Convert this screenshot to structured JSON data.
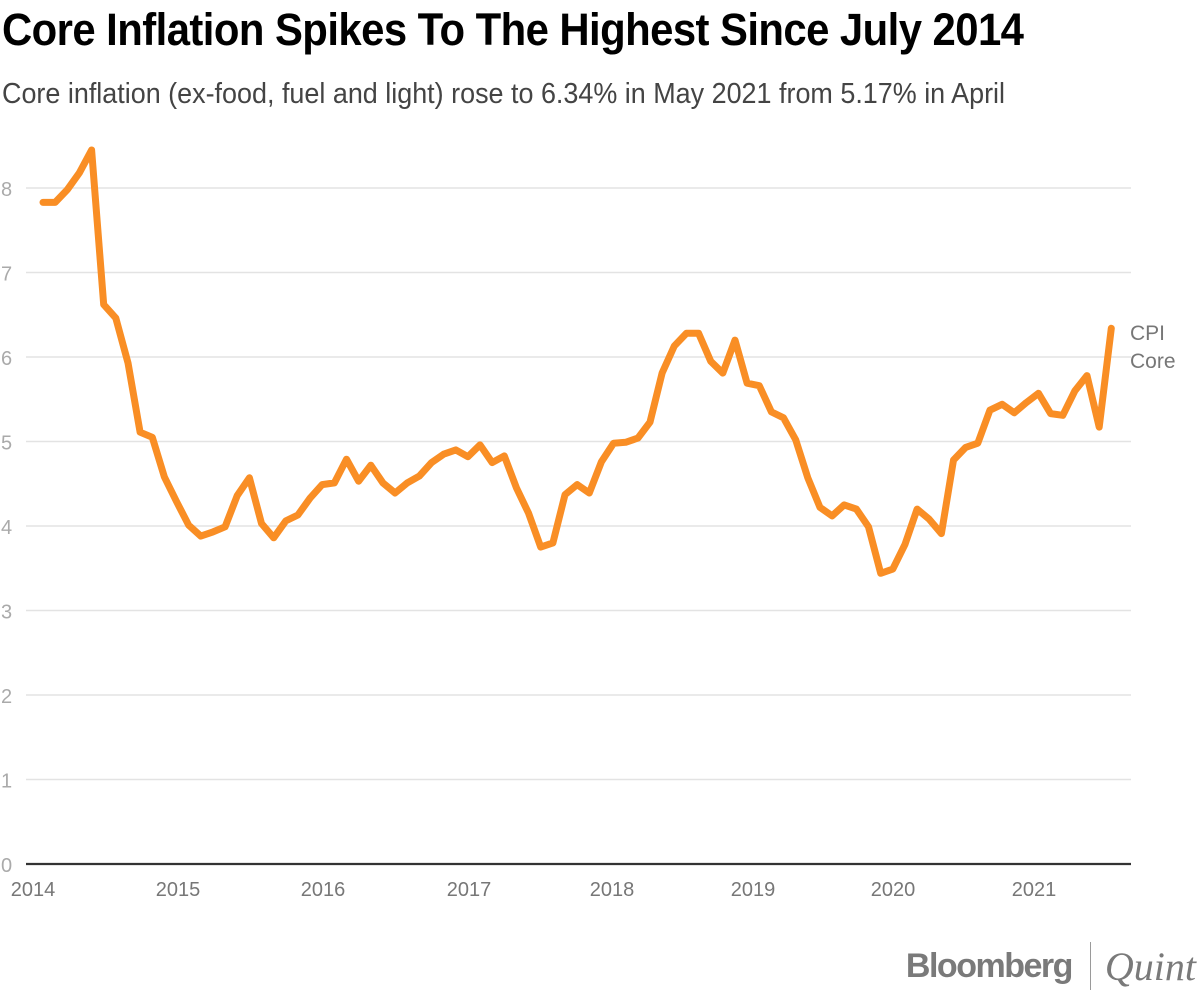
{
  "header": {
    "title": "Core Inflation Spikes To The Highest Since July 2014",
    "subtitle": "Core inflation (ex-food, fuel and light) rose to 6.34% in May 2021 from 5.17% in April"
  },
  "branding": {
    "bloomberg": "Bloomberg",
    "quint": "Quint"
  },
  "chart_data": {
    "type": "line",
    "title": "Core Inflation Spikes To The Highest Since July 2014",
    "subtitle": "Core inflation (ex-food, fuel and light) rose to 6.34% in May 2021 from 5.17% in April",
    "xlabel": "",
    "ylabel": "",
    "x_start": "2014-01",
    "x_end": "2021-05",
    "x_frequency": "monthly",
    "x_ticks": [
      "2014",
      "2015",
      "2016",
      "2017",
      "2018",
      "2019",
      "2020",
      "2021"
    ],
    "y_ticks": [
      "0",
      "1",
      "2",
      "3",
      "4",
      "5",
      "6",
      "7",
      "8"
    ],
    "ylim": [
      0,
      8.5
    ],
    "grid": true,
    "legend": "inline label at right end of line",
    "series_color": "#f98e25",
    "series": [
      {
        "name": "CPI Core",
        "label_lines": [
          "CPI",
          "Core"
        ],
        "values": [
          7.83,
          7.83,
          7.98,
          8.18,
          8.45,
          6.62,
          6.46,
          5.93,
          5.11,
          5.05,
          4.58,
          4.29,
          4.01,
          3.88,
          3.93,
          3.99,
          4.36,
          4.57,
          4.03,
          3.86,
          4.06,
          4.13,
          4.33,
          4.49,
          4.51,
          4.79,
          4.53,
          4.72,
          4.51,
          4.39,
          4.51,
          4.59,
          4.75,
          4.85,
          4.9,
          4.82,
          4.96,
          4.75,
          4.83,
          4.45,
          4.15,
          3.75,
          3.8,
          4.37,
          4.49,
          4.39,
          4.76,
          4.98,
          4.99,
          5.04,
          5.23,
          5.81,
          6.13,
          6.28,
          6.28,
          5.95,
          5.81,
          6.2,
          5.69,
          5.66,
          5.35,
          5.28,
          5.02,
          4.57,
          4.22,
          4.12,
          4.25,
          4.2,
          3.99,
          3.44,
          3.49,
          3.78,
          4.2,
          4.08,
          3.91,
          4.78,
          4.93,
          4.98,
          5.37,
          5.44,
          5.34,
          5.46,
          5.57,
          5.33,
          5.31,
          5.6,
          5.78,
          5.17,
          6.34
        ]
      }
    ]
  }
}
